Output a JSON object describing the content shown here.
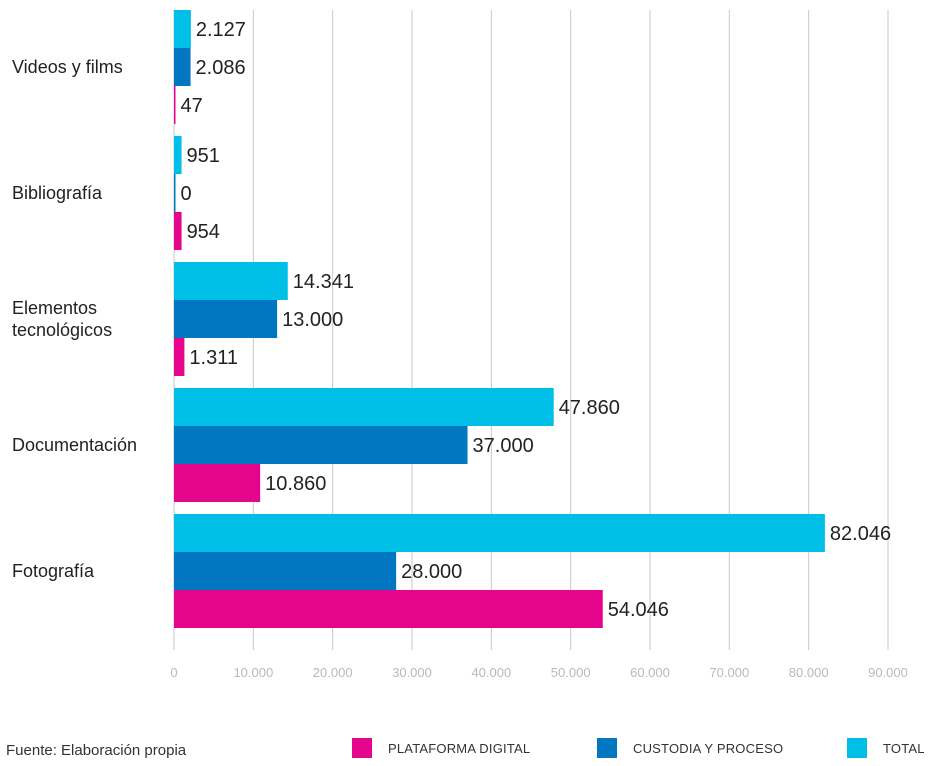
{
  "chart_data": {
    "type": "bar",
    "orientation": "horizontal",
    "categories": [
      "Videos y films",
      "Bibliografía",
      "Elementos tecnológicos",
      "Documentación",
      "Fotografía"
    ],
    "category_labels": [
      [
        "Videos y films"
      ],
      [
        "Bibliografía"
      ],
      [
        "Elementos",
        "tecnológicos"
      ],
      [
        "Documentación"
      ],
      [
        "Fotografía"
      ]
    ],
    "series": [
      {
        "name": "TOTAL",
        "color": "#00bfe6",
        "values": [
          2127,
          951,
          14341,
          47860,
          82046
        ],
        "labels": [
          "2.127",
          "951",
          "14.341",
          "47.860",
          "82.046"
        ]
      },
      {
        "name": "CUSTODIA Y PROCESO",
        "color": "#0077c0",
        "values": [
          2086,
          0,
          13000,
          37000,
          28000
        ],
        "labels": [
          "2.086",
          "0",
          "13.000",
          "37.000",
          "28.000"
        ]
      },
      {
        "name": "PLATAFORMA DIGITAL",
        "color": "#e4058c",
        "values": [
          47,
          954,
          1311,
          10860,
          54046
        ],
        "labels": [
          "47",
          "954",
          "1.311",
          "10.860",
          "54.046"
        ]
      }
    ],
    "xlim": [
      0,
      90000
    ],
    "xticks": [
      0,
      10000,
      20000,
      30000,
      40000,
      50000,
      60000,
      70000,
      80000,
      90000
    ],
    "xtick_labels": [
      "0",
      "10.000",
      "20.000",
      "30.000",
      "40.000",
      "50.000",
      "60.000",
      "70.000",
      "80.000",
      "90.000"
    ],
    "grid": "vertical",
    "legend_position": "bottom-right"
  },
  "legend": [
    {
      "name": "PLATAFORMA DIGITAL",
      "color": "#e4058c"
    },
    {
      "name": "CUSTODIA Y PROCESO",
      "color": "#0077c0"
    },
    {
      "name": "TOTAL",
      "color": "#00bfe6"
    }
  ],
  "footer": {
    "source": "Fuente: Elaboración propia"
  }
}
